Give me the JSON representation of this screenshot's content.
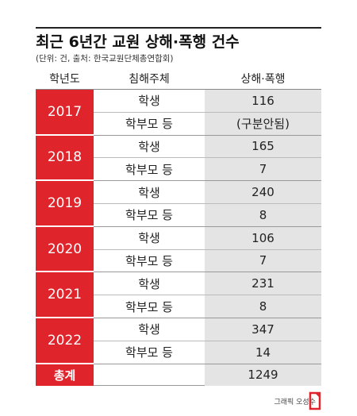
{
  "header": {
    "title": "최근 6년간 교원 상해·폭행 건수",
    "subtitle": "(단위: 건, 출처: 한국교원단체총연합회)"
  },
  "table": {
    "columns": [
      "학년도",
      "침해주체",
      "상해·폭행"
    ],
    "groups": [
      {
        "year": "2017",
        "rows": [
          {
            "subject": "학생",
            "count": 116
          },
          {
            "subject": "학부모 등",
            "count": "(구분안됨)"
          }
        ]
      },
      {
        "year": "2018",
        "rows": [
          {
            "subject": "학생",
            "count": 165
          },
          {
            "subject": "학부모 등",
            "count": 7
          }
        ]
      },
      {
        "year": "2019",
        "rows": [
          {
            "subject": "학생",
            "count": 240
          },
          {
            "subject": "학부모 등",
            "count": 8
          }
        ]
      },
      {
        "year": "2020",
        "rows": [
          {
            "subject": "학생",
            "count": 106
          },
          {
            "subject": "학부모 등",
            "count": 7
          }
        ]
      },
      {
        "year": "2021",
        "rows": [
          {
            "subject": "학생",
            "count": 231
          },
          {
            "subject": "학부모 등",
            "count": 8
          }
        ]
      },
      {
        "year": "2022",
        "rows": [
          {
            "subject": "학생",
            "count": 347
          },
          {
            "subject": "학부모 등",
            "count": 14
          }
        ]
      }
    ],
    "total": {
      "label": "총계",
      "count": 1249
    }
  },
  "footer": {
    "credit": "그래픽 오성수"
  }
}
